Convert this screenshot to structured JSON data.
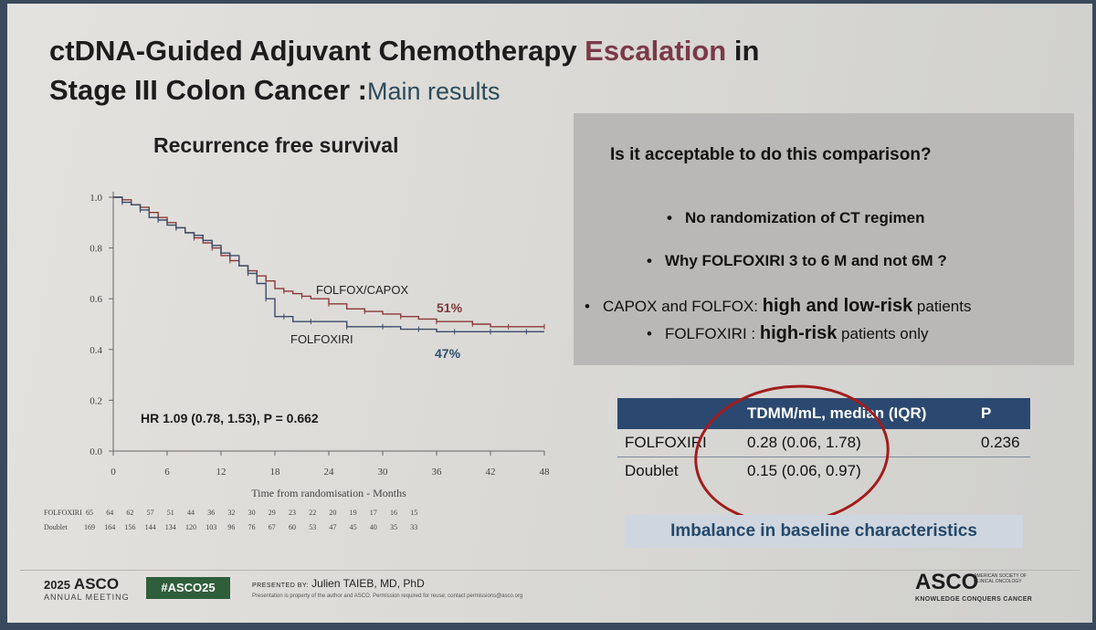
{
  "slide": {
    "title_part1": "ctDNA-Guided Adjuvant Chemotherapy ",
    "title_accent": "Escalation",
    "title_part2": " in",
    "title_line2": "Stage III Colon Cancer :",
    "title_line2_sub": "Main results"
  },
  "chart_data": {
    "type": "line",
    "title": "Recurrence free survival",
    "xlabel": "Time from randomisation - Months",
    "ylabel": "",
    "xlim": [
      0,
      48
    ],
    "ylim": [
      0,
      1.0
    ],
    "x_ticks": [
      0,
      6,
      12,
      18,
      24,
      30,
      36,
      42,
      48
    ],
    "y_ticks": [
      0.0,
      0.2,
      0.4,
      0.6,
      0.8,
      1.0
    ],
    "y_tick_labels": [
      "0.0",
      "0.2",
      "0.4",
      "0.6",
      "0.8",
      "1.0"
    ],
    "grid": false,
    "series": [
      {
        "name": "FOLFOX/CAPOX",
        "color": "#8a3a3a",
        "x": [
          0,
          1,
          2,
          3,
          4,
          5,
          6,
          7,
          8,
          9,
          10,
          11,
          12,
          13,
          14,
          15,
          16,
          17,
          18,
          19,
          20,
          21,
          22,
          24,
          26,
          28,
          30,
          32,
          34,
          36,
          38,
          40,
          42,
          44,
          46,
          48
        ],
        "y": [
          1.0,
          0.99,
          0.97,
          0.96,
          0.94,
          0.92,
          0.9,
          0.88,
          0.86,
          0.84,
          0.82,
          0.8,
          0.77,
          0.75,
          0.73,
          0.71,
          0.69,
          0.67,
          0.64,
          0.63,
          0.62,
          0.61,
          0.6,
          0.58,
          0.56,
          0.55,
          0.54,
          0.53,
          0.52,
          0.51,
          0.51,
          0.5,
          0.49,
          0.49,
          0.49,
          0.49
        ]
      },
      {
        "name": "FOLFOXIRI",
        "color": "#3a4a6a",
        "x": [
          0,
          1,
          2,
          3,
          4,
          5,
          6,
          7,
          8,
          9,
          10,
          11,
          12,
          13,
          14,
          15,
          16,
          17,
          18,
          19,
          20,
          22,
          24,
          26,
          28,
          30,
          32,
          34,
          36,
          38,
          40,
          42,
          44,
          46,
          48
        ],
        "y": [
          1.0,
          0.98,
          0.97,
          0.95,
          0.92,
          0.91,
          0.89,
          0.88,
          0.86,
          0.85,
          0.83,
          0.81,
          0.78,
          0.77,
          0.73,
          0.7,
          0.66,
          0.6,
          0.53,
          0.53,
          0.51,
          0.51,
          0.51,
          0.49,
          0.49,
          0.49,
          0.48,
          0.48,
          0.47,
          0.47,
          0.47,
          0.47,
          0.47,
          0.47,
          0.47
        ]
      }
    ],
    "annotations": {
      "folfox_pct": "51%",
      "folfoxiri_pct": "47%",
      "folfox_label": "FOLFOX/CAPOX",
      "folfoxiri_label": "FOLFOXIRI",
      "hr_text": "HR 1.09 (0.78, 1.53), P = 0.662"
    },
    "risk_table": {
      "rows": [
        {
          "label": "FOLFOXIRI",
          "values": [
            "65",
            "64",
            "62",
            "57",
            "51",
            "44",
            "36",
            "32",
            "30",
            "29",
            "23",
            "22",
            "20",
            "19",
            "17",
            "16",
            "15"
          ]
        },
        {
          "label": "Doublet",
          "values": [
            "169",
            "164",
            "156",
            "144",
            "134",
            "120",
            "103",
            "96",
            "76",
            "67",
            "60",
            "53",
            "47",
            "45",
            "40",
            "35",
            "33"
          ]
        }
      ]
    }
  },
  "panel": {
    "question": "Is it acceptable to do this comparison?",
    "bullet1": "No randomization of CT regimen",
    "bullet2": "Why FOLFOXIRI 3 to 6 M and not 6M ?",
    "bullet3_a": "CAPOX and FOLFOX: ",
    "bullet3_b": "high and low-risk",
    "bullet3_c": " patients",
    "bullet4_a": "FOLFOXIRI : ",
    "bullet4_b": "high-risk",
    "bullet4_c": " patients only"
  },
  "table": {
    "headers": [
      "",
      "TDMM/mL, median (IQR)",
      "P"
    ],
    "rows": [
      [
        "FOLFOXIRI",
        "0.28 (0.06, 1.78)",
        "0.236"
      ],
      [
        "Doublet",
        "0.15 (0.06, 0.97)",
        ""
      ]
    ],
    "note": "Imbalance in baseline characteristics"
  },
  "footer": {
    "year": "2025",
    "asco": "ASCO",
    "annual": "ANNUAL MEETING",
    "hashtag": "#ASCO25",
    "presented_by_label": "PRESENTED BY:",
    "presenter": "Julien TAIEB, MD, PhD",
    "disclaimer": "Presentation is property of the author and ASCO. Permission required for reuse; contact permissions@asco.org",
    "logo": "ASCO",
    "society": "AMERICAN SOCIETY OF CLINICAL ONCOLOGY",
    "tagline": "KNOWLEDGE CONQUERS CANCER"
  }
}
